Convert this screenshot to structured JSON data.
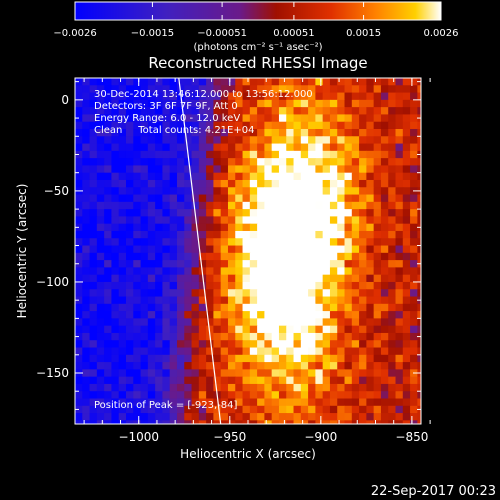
{
  "chart_data": {
    "type": "heatmap",
    "title": "Reconstructed RHESSI Image",
    "xlabel": "Heliocentric X (arcsec)",
    "ylabel": "Heliocentric Y (arcsec)",
    "xlim": [
      -1035,
      -845
    ],
    "ylim": [
      -178,
      12
    ],
    "x_ticks": [
      -1000,
      -950,
      -900,
      -850
    ],
    "y_ticks": [
      0,
      -50,
      -100,
      -150
    ],
    "x_tick_labels": [
      "−1000",
      "−950",
      "−900",
      "−850"
    ],
    "y_tick_labels": [
      "0",
      "−50",
      "−100",
      "−150"
    ],
    "colorbar": {
      "range": [
        -0.0026,
        0.0026
      ],
      "ticks": [
        -0.0026,
        -0.0015,
        -0.00051,
        0.00051,
        0.0015,
        0.0026
      ],
      "tick_labels": [
        "−0.0026",
        "−0.0015",
        "−0.00051",
        "0.00051",
        "0.0015",
        "0.0026"
      ],
      "units_text": "(photons cm⁻² s⁻¹ asec⁻²)"
    },
    "annotations": [
      "30-Dec-2014 13:46:12.000 to 13:56:12.000",
      "Detectors: 3F 6F 7F 9F, Att 0",
      "Energy Range: 6.0 - 12.0 keV",
      "Clean     Total counts: 4.21E+04"
    ],
    "peak_label": "Position of Peak = [-923,-84]",
    "peak": [
      -923,
      -84
    ],
    "limb_line": [
      [
        -978,
        12
      ],
      [
        -955,
        -178
      ]
    ],
    "pixel_size_arcsec": 4,
    "source_centers": [
      {
        "x": -925,
        "y": -85,
        "value": 0.0026
      },
      {
        "x": -905,
        "y": -45,
        "value": 0.0023
      },
      {
        "x": -915,
        "y": -130,
        "value": 0.0016
      }
    ],
    "background_level_left": -0.0022,
    "background_level_right": 0.0006
  },
  "footer": {
    "timestamp": "22-Sep-2017 00:23"
  }
}
